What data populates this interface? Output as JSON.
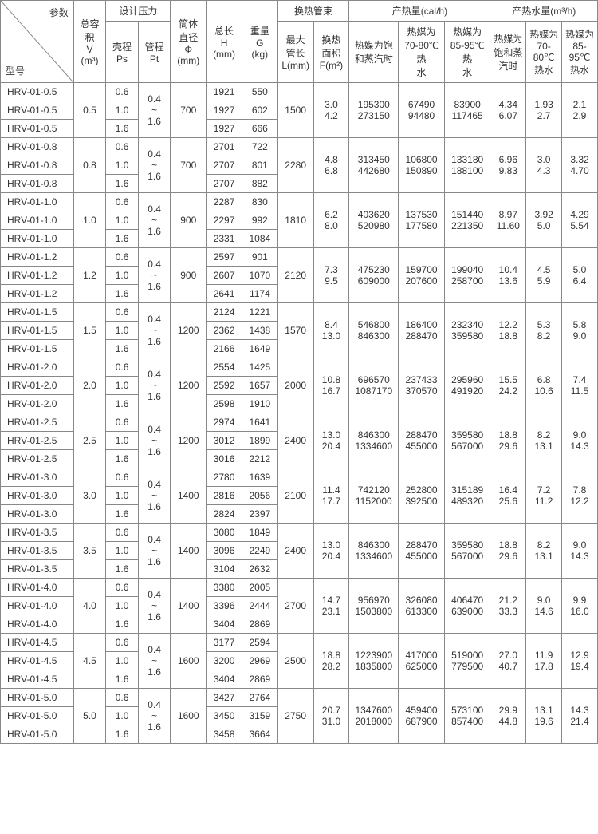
{
  "headers": {
    "diag_top": "参数",
    "diag_bottom": "型号",
    "vol": "总容积\nV\n(m³)",
    "design_pressure": "设计压力",
    "shell": "壳程\nPs",
    "tube": "管程\nPt",
    "dia": "筒体\n直径\nΦ\n(mm)",
    "len": "总长\nH\n(mm)",
    "weight": "重量\nG\n(kg)",
    "bundle": "换热管束",
    "maxlen": "最大\n管长\nL(mm)",
    "area": "换热\n面积\nF(m²)",
    "heat_cal": "产热量(cal/h)",
    "hc1": "热媒为饱\n和蒸汽时",
    "hc2": "热媒为\n70-80℃热\n水",
    "hc3": "热媒为\n85-95℃热\n水",
    "heat_m3": "产热水量(m³/h)",
    "hm1": "热媒为\n饱和蒸\n汽时",
    "hm2": "热媒为\n70-80℃\n热水",
    "hm3": "热媒为\n85-95℃\n热水"
  },
  "tube_range": "0.4\n~\n1.6",
  "shell_vals": [
    "0.6",
    "1.0",
    "1.6"
  ],
  "groups": [
    {
      "model": "HRV-01-0.5",
      "vol": "0.5",
      "dia": "700",
      "H": [
        "1921",
        "1927",
        "1927"
      ],
      "G": [
        "550",
        "602",
        "666"
      ],
      "maxL": "1500",
      "area": "3.0\n4.2",
      "hc": [
        "195300\n273150",
        "67490\n94480",
        "83900\n117465"
      ],
      "hm": [
        "4.34\n6.07",
        "1.93\n2.7",
        "2.1\n2.9"
      ]
    },
    {
      "model": "HRV-01-0.8",
      "vol": "0.8",
      "dia": "700",
      "H": [
        "2701",
        "2707",
        "2707"
      ],
      "G": [
        "722",
        "801",
        "882"
      ],
      "maxL": "2280",
      "area": "4.8\n6.8",
      "hc": [
        "313450\n442680",
        "106800\n150890",
        "133180\n188100"
      ],
      "hm": [
        "6.96\n9.83",
        "3.0\n4.3",
        "3.32\n4.70"
      ]
    },
    {
      "model": "HRV-01-1.0",
      "vol": "1.0",
      "dia": "900",
      "H": [
        "2287",
        "2297",
        "2331"
      ],
      "G": [
        "830",
        "992",
        "1084"
      ],
      "maxL": "1810",
      "area": "6.2\n8.0",
      "hc": [
        "403620\n520980",
        "137530\n177580",
        "151440\n221350"
      ],
      "hm": [
        "8.97\n11.60",
        "3.92\n5.0",
        "4.29\n5.54"
      ]
    },
    {
      "model": "HRV-01-1.2",
      "vol": "1.2",
      "dia": "900",
      "H": [
        "2597",
        "2607",
        "2641"
      ],
      "G": [
        "901",
        "1070",
        "1174"
      ],
      "maxL": "2120",
      "area": "7.3\n9.5",
      "hc": [
        "475230\n609000",
        "159700\n207600",
        "199040\n258700"
      ],
      "hm": [
        "10.4\n13.6",
        "4.5\n5.9",
        "5.0\n6.4"
      ]
    },
    {
      "model": "HRV-01-1.5",
      "vol": "1.5",
      "dia": "1200",
      "H": [
        "2124",
        "2362",
        "2166"
      ],
      "G": [
        "1221",
        "1438",
        "1649"
      ],
      "maxL": "1570",
      "area": "8.4\n13.0",
      "hc": [
        "546800\n846300",
        "186400\n288470",
        "232340\n359580"
      ],
      "hm": [
        "12.2\n18.8",
        "5.3\n8.2",
        "5.8\n9.0"
      ]
    },
    {
      "model": "HRV-01-2.0",
      "vol": "2.0",
      "dia": "1200",
      "H": [
        "2554",
        "2592",
        "2598"
      ],
      "G": [
        "1425",
        "1657",
        "1910"
      ],
      "maxL": "2000",
      "area": "10.8\n16.7",
      "hc": [
        "696570\n1087170",
        "237433\n370570",
        "295960\n491920"
      ],
      "hm": [
        "15.5\n24.2",
        "6.8\n10.6",
        "7.4\n11.5"
      ]
    },
    {
      "model": "HRV-01-2.5",
      "vol": "2.5",
      "dia": "1200",
      "H": [
        "2974",
        "3012",
        "3016"
      ],
      "G": [
        "1641",
        "1899",
        "2212"
      ],
      "maxL": "2400",
      "area": "13.0\n20.4",
      "hc": [
        "846300\n1334600",
        "288470\n455000",
        "359580\n567000"
      ],
      "hm": [
        "18.8\n29.6",
        "8.2\n13.1",
        "9.0\n14.3"
      ]
    },
    {
      "model": "HRV-01-3.0",
      "vol": "3.0",
      "dia": "1400",
      "H": [
        "2780",
        "2816",
        "2824"
      ],
      "G": [
        "1639",
        "2056",
        "2397"
      ],
      "maxL": "2100",
      "area": "11.4\n17.7",
      "hc": [
        "742120\n1152000",
        "252800\n392500",
        "315189\n489320"
      ],
      "hm": [
        "16.4\n25.6",
        "7.2\n11.2",
        "7.8\n12.2"
      ]
    },
    {
      "model": "HRV-01-3.5",
      "vol": "3.5",
      "dia": "1400",
      "H": [
        "3080",
        "3096",
        "3104"
      ],
      "G": [
        "1849",
        "2249",
        "2632"
      ],
      "maxL": "2400",
      "area": "13.0\n20.4",
      "hc": [
        "846300\n1334600",
        "288470\n455000",
        "359580\n567000"
      ],
      "hm": [
        "18.8\n29.6",
        "8.2\n13.1",
        "9.0\n14.3"
      ]
    },
    {
      "model": "HRV-01-4.0",
      "vol": "4.0",
      "dia": "1400",
      "H": [
        "3380",
        "3396",
        "3404"
      ],
      "G": [
        "2005",
        "2444",
        "2869"
      ],
      "maxL": "2700",
      "area": "14.7\n23.1",
      "hc": [
        "956970\n1503800",
        "326080\n613300",
        "406470\n639000"
      ],
      "hm": [
        "21.2\n33.3",
        "9.0\n14.6",
        "9.9\n16.0"
      ]
    },
    {
      "model": "HRV-01-4.5",
      "vol": "4.5",
      "dia": "1600",
      "H": [
        "3177",
        "3200",
        "3404"
      ],
      "G": [
        "2594",
        "2969",
        "2869"
      ],
      "maxL": "2500",
      "area": "18.8\n28.2",
      "hc": [
        "1223900\n1835800",
        "417000\n625000",
        "519000\n779500"
      ],
      "hm": [
        "27.0\n40.7",
        "11.9\n17.8",
        "12.9\n19.4"
      ]
    },
    {
      "model": "HRV-01-5.0",
      "vol": "5.0",
      "dia": "1600",
      "H": [
        "3427",
        "3450",
        "3458"
      ],
      "G": [
        "2764",
        "3159",
        "3664"
      ],
      "maxL": "2750",
      "area": "20.7\n31.0",
      "hc": [
        "1347600\n2018000",
        "459400\n687900",
        "573100\n857400"
      ],
      "hm": [
        "29.9\n44.8",
        "13.1\n19.6",
        "14.3\n21.4"
      ]
    }
  ]
}
